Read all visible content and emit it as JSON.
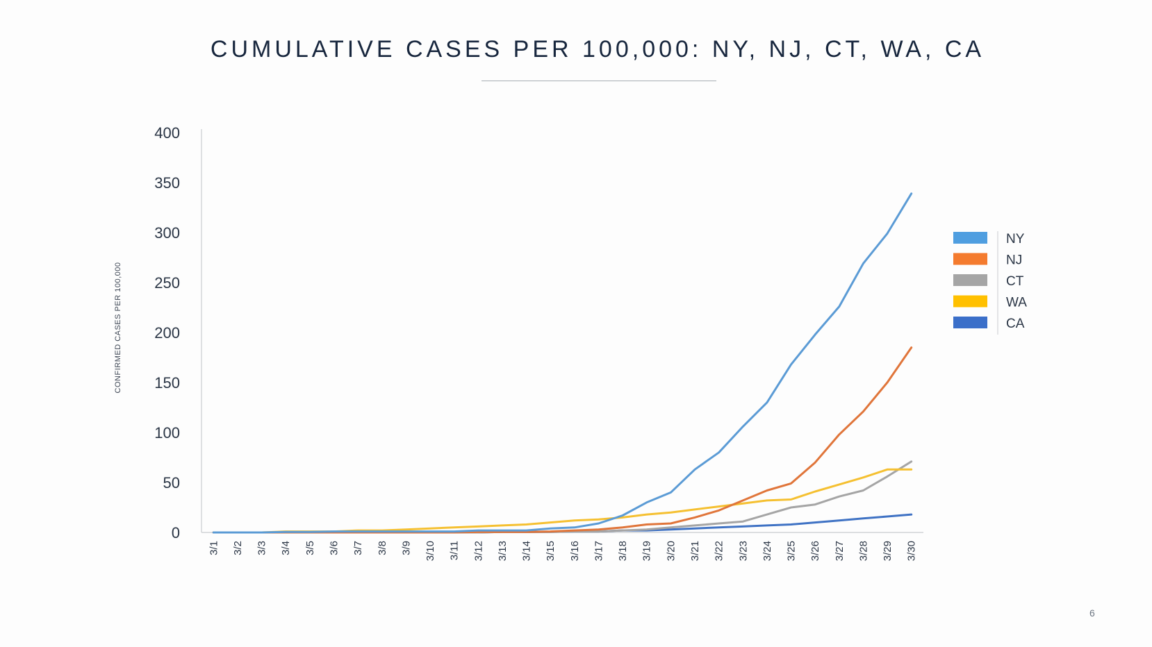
{
  "slide": {
    "title": "CUMULATIVE CASES PER 100,000: NY, NJ, CT, WA, CA",
    "page_number": "6"
  },
  "chart_data": {
    "type": "line",
    "title": "",
    "xlabel": "",
    "ylabel": "CONFIRMED CASES PER 100,000",
    "ylim": [
      0,
      400
    ],
    "yticks": [
      0,
      50,
      100,
      150,
      200,
      250,
      300,
      350,
      400
    ],
    "grid": false,
    "legend_position": "right",
    "categories": [
      "3/1",
      "3/2",
      "3/3",
      "3/4",
      "3/5",
      "3/6",
      "3/7",
      "3/8",
      "3/9",
      "3/10",
      "3/11",
      "3/12",
      "3/13",
      "3/14",
      "3/15",
      "3/16",
      "3/17",
      "3/18",
      "3/19",
      "3/20",
      "3/21",
      "3/22",
      "3/23",
      "3/24",
      "3/25",
      "3/26",
      "3/27",
      "3/28",
      "3/29",
      "3/30"
    ],
    "series": [
      {
        "name": "NY",
        "color": "#5b9bd5",
        "legend_color": "#4f9ee0",
        "values": [
          0,
          0,
          0,
          0.5,
          0.5,
          1,
          1,
          1,
          1,
          1,
          1,
          2,
          2,
          2,
          4,
          5,
          9,
          17,
          30,
          40,
          63,
          80,
          106,
          130,
          168,
          198,
          226,
          269,
          299,
          339
        ]
      },
      {
        "name": "NJ",
        "color": "#e0753a",
        "legend_color": "#f47b2e",
        "values": [
          0,
          0,
          0,
          0,
          0,
          0,
          0,
          0,
          0,
          0,
          0,
          0.5,
          0.5,
          0.5,
          1,
          2,
          3,
          5,
          8,
          9,
          15,
          22,
          32,
          42,
          49,
          70,
          98,
          121,
          150,
          185
        ]
      },
      {
        "name": "CT",
        "color": "#a5a5a5",
        "legend_color": "#a5a5a5",
        "values": [
          0,
          0,
          0,
          0,
          0,
          0,
          0,
          0,
          0,
          0,
          0,
          0,
          0.5,
          0.5,
          0.5,
          1,
          1,
          2,
          3,
          5,
          7,
          9,
          11,
          18,
          25,
          28,
          36,
          42,
          56,
          71
        ]
      },
      {
        "name": "WA",
        "color": "#f5c031",
        "legend_color": "#ffc000",
        "values": [
          0,
          0,
          0,
          1,
          1,
          1,
          2,
          2,
          3,
          4,
          5,
          6,
          7,
          8,
          10,
          12,
          13,
          15,
          18,
          20,
          23,
          26,
          29,
          32,
          33,
          41,
          48,
          55,
          63,
          63
        ]
      },
      {
        "name": "CA",
        "color": "#3f72c4",
        "legend_color": "#3b6fc9",
        "values": [
          0,
          0,
          0,
          0,
          0,
          0,
          0,
          0,
          0,
          0,
          0,
          0,
          0.5,
          0.5,
          0.5,
          1,
          1,
          2,
          2,
          3,
          4,
          5,
          6,
          7,
          8,
          10,
          12,
          14,
          16,
          18
        ]
      }
    ]
  }
}
